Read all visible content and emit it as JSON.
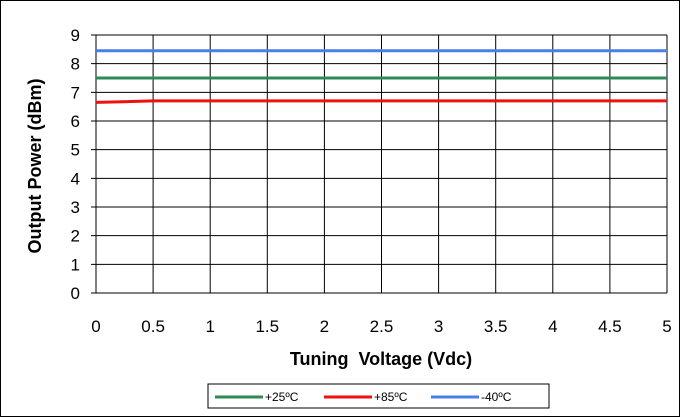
{
  "chart_data": {
    "type": "line",
    "xlabel": "Tuning  Voltage (Vdc)",
    "ylabel": "Output Power (dBm)",
    "xlim": [
      0,
      5
    ],
    "ylim": [
      0,
      9
    ],
    "xticks": [
      "0",
      "0.5",
      "1",
      "1.5",
      "2",
      "2.5",
      "3",
      "3.5",
      "4",
      "4.5",
      "5"
    ],
    "yticks": [
      "0",
      "1",
      "2",
      "3",
      "4",
      "5",
      "6",
      "7",
      "8",
      "9"
    ],
    "grid": true,
    "legend_position": "bottom",
    "series": [
      {
        "name": "+25ºC",
        "color": "#2e8b57",
        "x": [
          0,
          5
        ],
        "y": [
          7.5,
          7.5
        ]
      },
      {
        "name": "+85ºC",
        "color": "#ee1111",
        "x": [
          0,
          0.5,
          5
        ],
        "y": [
          6.65,
          6.7,
          6.7
        ]
      },
      {
        "name": "-40ºC",
        "color": "#4a7fe8",
        "x": [
          0,
          5
        ],
        "y": [
          8.45,
          8.45
        ]
      }
    ]
  }
}
